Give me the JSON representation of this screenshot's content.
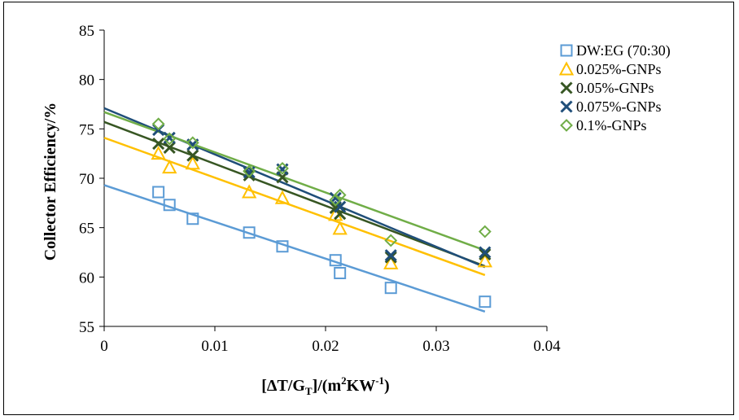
{
  "chart_data": {
    "type": "scatter",
    "xlabel": "[ΔT/G",
    "xlabel_sub": "T",
    "xlabel_mid": "]/(m",
    "xlabel_sup1": "2",
    "xlabel_mid2": "KW",
    "xlabel_sup2": "-1",
    "xlabel_end": ")",
    "ylabel": "Collector  Efficiency/%",
    "xlim": [
      0,
      0.04
    ],
    "ylim": [
      55,
      85
    ],
    "xticks": [
      0,
      0.01,
      0.02,
      0.03,
      0.04
    ],
    "xtick_labels": [
      "0",
      "0.01",
      "0.02",
      "0.03",
      "0.04"
    ],
    "yticks": [
      55,
      60,
      65,
      70,
      75,
      80,
      85
    ],
    "ytick_labels": [
      "55",
      "60",
      "65",
      "70",
      "75",
      "80",
      "85"
    ],
    "grid": false,
    "legend_position": "top-right",
    "series": [
      {
        "name": "DW:EG (70:30)",
        "marker": "square",
        "color": "#5B9BD5",
        "points": [
          [
            0.0049,
            68.6
          ],
          [
            0.0059,
            67.3
          ],
          [
            0.008,
            65.9
          ],
          [
            0.0131,
            64.5
          ],
          [
            0.0161,
            63.1
          ],
          [
            0.0209,
            61.7
          ],
          [
            0.0213,
            60.4
          ],
          [
            0.0259,
            58.9
          ],
          [
            0.0344,
            57.5
          ]
        ],
        "trendline": [
          [
            0,
            69.3
          ],
          [
            0.0344,
            56.5
          ]
        ]
      },
      {
        "name": "0.025%-GNPs",
        "marker": "triangle",
        "color": "#FFC000",
        "points": [
          [
            0.0049,
            72.5
          ],
          [
            0.0059,
            71.1
          ],
          [
            0.008,
            71.5
          ],
          [
            0.0131,
            68.6
          ],
          [
            0.0161,
            68.0
          ],
          [
            0.0209,
            66.3
          ],
          [
            0.0213,
            64.9
          ],
          [
            0.0259,
            61.4
          ],
          [
            0.0344,
            61.6
          ]
        ],
        "trendline": [
          [
            0,
            74.1
          ],
          [
            0.0344,
            60.2
          ]
        ]
      },
      {
        "name": "0.05%-GNPs",
        "marker": "x",
        "color": "#375623",
        "points": [
          [
            0.0049,
            73.5
          ],
          [
            0.0059,
            73.1
          ],
          [
            0.008,
            72.3
          ],
          [
            0.0131,
            70.3
          ],
          [
            0.0161,
            70.1
          ],
          [
            0.0209,
            67.0
          ],
          [
            0.0213,
            66.4
          ],
          [
            0.0259,
            62.0
          ],
          [
            0.0344,
            62.3
          ]
        ],
        "trendline": [
          [
            0,
            75.7
          ],
          [
            0.0344,
            61.1
          ]
        ]
      },
      {
        "name": "0.075%-GNPs",
        "marker": "x",
        "color": "#1F4E79",
        "points": [
          [
            0.0049,
            74.9
          ],
          [
            0.0059,
            74.1
          ],
          [
            0.008,
            73.4
          ],
          [
            0.0131,
            70.6
          ],
          [
            0.0161,
            70.9
          ],
          [
            0.0209,
            68.0
          ],
          [
            0.0213,
            67.1
          ],
          [
            0.0259,
            62.2
          ],
          [
            0.0344,
            62.5
          ]
        ],
        "trendline": [
          [
            0,
            77.1
          ],
          [
            0.0344,
            61.0
          ]
        ]
      },
      {
        "name": "0.1%-GNPs",
        "marker": "diamond",
        "color": "#70AD47",
        "points": [
          [
            0.0049,
            75.5
          ],
          [
            0.0059,
            74.0
          ],
          [
            0.008,
            73.6
          ],
          [
            0.0131,
            70.7
          ],
          [
            0.0161,
            71.0
          ],
          [
            0.0209,
            67.8
          ],
          [
            0.0213,
            68.3
          ],
          [
            0.0259,
            63.7
          ],
          [
            0.0344,
            64.6
          ]
        ],
        "trendline": [
          [
            0,
            76.7
          ],
          [
            0.0344,
            62.7
          ]
        ]
      }
    ]
  }
}
